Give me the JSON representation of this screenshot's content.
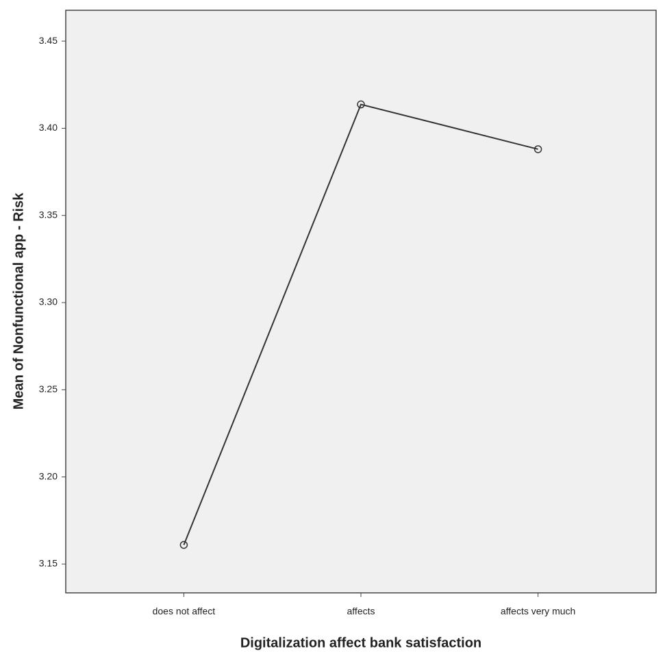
{
  "chart_data": {
    "type": "line",
    "x_label": "Digitalization affect bank satisfaction",
    "y_label": "Mean of Nonfunctional app - Risk",
    "categories": [
      "does not affect",
      "affects",
      "affects very much"
    ],
    "series": [
      {
        "name": "Mean",
        "color": "#333333",
        "values": [
          3.161,
          3.4137,
          3.388
        ]
      }
    ],
    "ylim": [
      3.1335,
      3.4677
    ],
    "yticks": [
      3.15,
      {
        "value": 3.2,
        "label": "3.20"
      },
      3.25,
      {
        "value": 3.3,
        "label": "3.30"
      },
      3.35,
      {
        "value": 3.4,
        "label": "3.40"
      },
      3.45
    ],
    "grid": false,
    "markers": "open-circle"
  }
}
